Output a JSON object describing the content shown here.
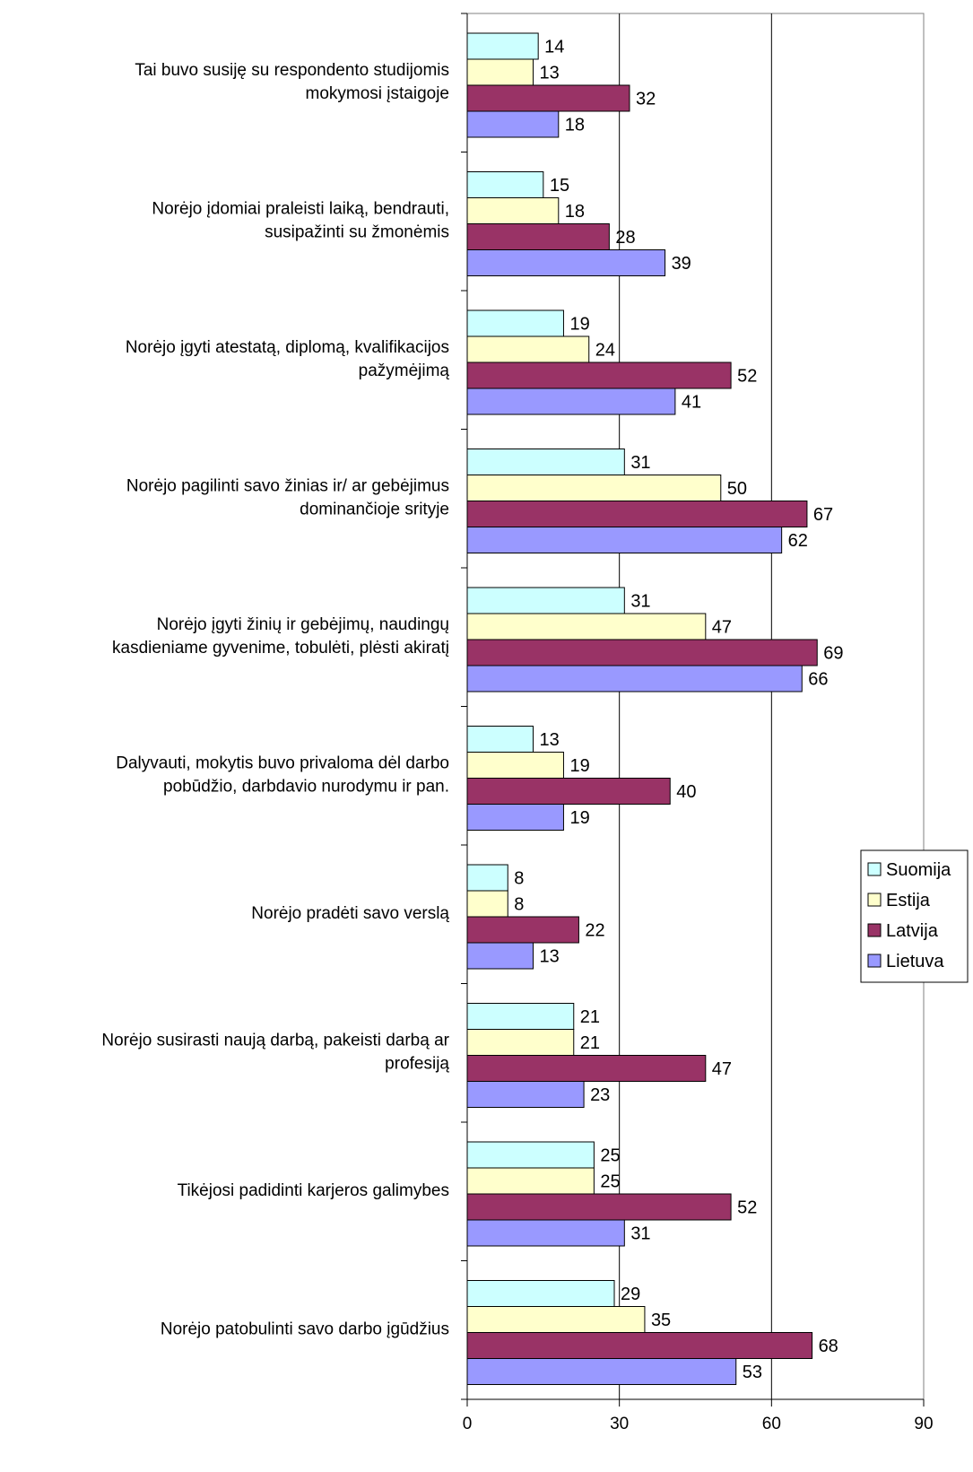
{
  "chart_data": {
    "type": "bar",
    "orientation": "horizontal",
    "categories": [
      [
        "Tai buvo susiję su respondento studijomis",
        "mokymosi įstaigoje"
      ],
      [
        "Norėjo įdomiai praleisti laiką, bendrauti,",
        "susipažinti su žmonėmis"
      ],
      [
        "Norėjo įgyti atestatą, diplomą, kvalifikacijos",
        "pažymėjimą"
      ],
      [
        "Norėjo pagilinti savo žinias ir/ ar gebėjimus",
        "dominančioje srityje"
      ],
      [
        "Norėjo įgyti žinių ir gebėjimų, naudingų",
        "kasdieniame gyvenime, tobulėti, plėsti akiratį"
      ],
      [
        "Dalyvauti, mokytis buvo privaloma dėl darbo",
        "pobūdžio, darbdavio nurodymu ir pan."
      ],
      [
        "Norėjo pradėti savo verslą"
      ],
      [
        "Norėjo susirasti naują darbą, pakeisti darbą ar",
        "profesiją"
      ],
      [
        "Tikėjosi padidinti karjeros galimybes"
      ],
      [
        "Norėjo patobulinti savo darbo įgūdžius"
      ]
    ],
    "series": [
      {
        "name": "Suomija",
        "color": "#ccffff",
        "values": [
          14,
          15,
          19,
          31,
          31,
          13,
          8,
          21,
          25,
          29
        ]
      },
      {
        "name": "Estija",
        "color": "#ffffcc",
        "values": [
          13,
          18,
          24,
          50,
          47,
          19,
          8,
          21,
          25,
          35
        ]
      },
      {
        "name": "Latvija",
        "color": "#993366",
        "values": [
          32,
          28,
          52,
          67,
          69,
          40,
          22,
          47,
          52,
          68
        ]
      },
      {
        "name": "Lietuva",
        "color": "#9999ff",
        "values": [
          18,
          39,
          41,
          62,
          66,
          19,
          13,
          23,
          31,
          53
        ]
      }
    ],
    "x_ticks": [
      "0",
      "30",
      "60",
      "90"
    ],
    "xlim": [
      0,
      90
    ],
    "grid": true,
    "legend": "right"
  }
}
